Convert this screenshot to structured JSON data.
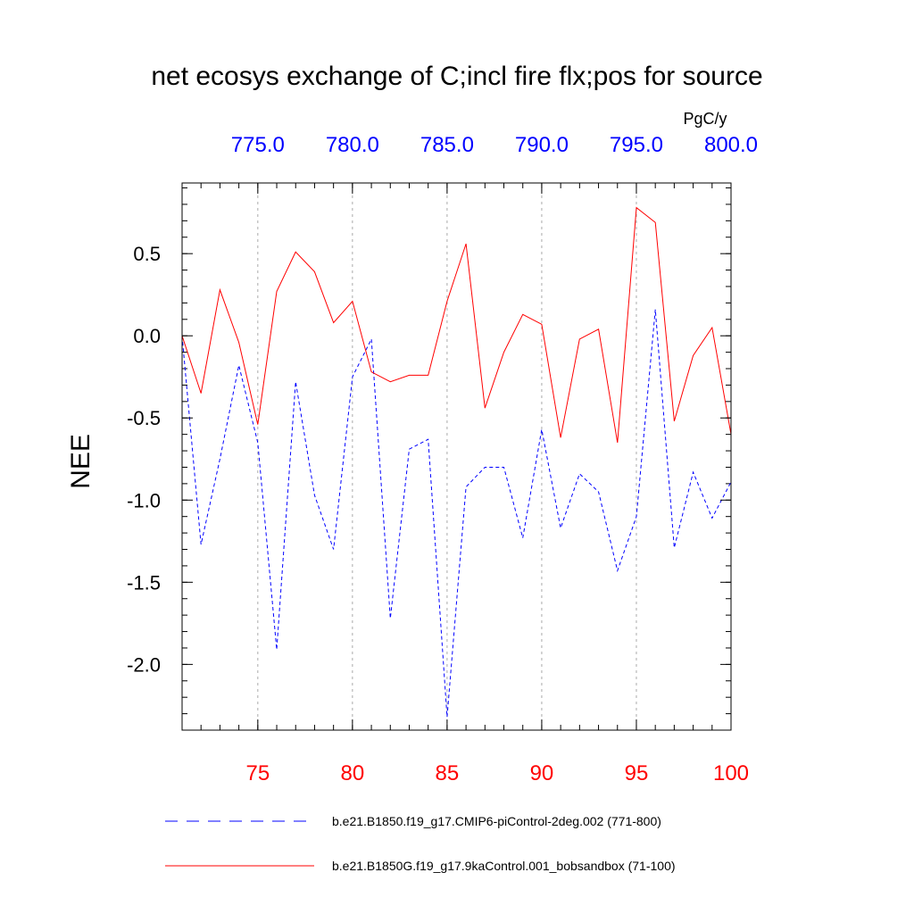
{
  "chart_data": {
    "type": "line",
    "title": "net ecosys exchange of C;incl fire flx;pos for source",
    "ylabel": "NEE",
    "units": "PgC/y",
    "ylim": [
      -2.4,
      0.93
    ],
    "yticks": [
      0.5,
      0.0,
      -0.5,
      -1.0,
      -1.5,
      -2.0
    ],
    "ytick_labels": [
      "0.5",
      "0.0",
      "-0.5",
      "-1.0",
      "-1.5",
      "-2.0"
    ],
    "bottom_axis": {
      "range": [
        71,
        100
      ],
      "ticks": [
        75,
        80,
        85,
        90,
        95,
        100
      ],
      "tick_labels": [
        "75",
        "80",
        "85",
        "90",
        "95",
        "100"
      ],
      "color": "#ff0000"
    },
    "top_axis": {
      "range": [
        771,
        800
      ],
      "ticks": [
        775,
        780,
        785,
        790,
        795,
        800
      ],
      "tick_labels": [
        "775.0",
        "780.0",
        "785.0",
        "790.0",
        "795.0",
        "800.0"
      ],
      "color": "#0000ff"
    },
    "series": [
      {
        "name": "b.e21.B1850.f19_g17.CMIP6-piControl-2deg.002 (771-800)",
        "axis": "top",
        "color": "#0000ff",
        "dash": "dashed",
        "x": [
          771,
          772,
          773,
          774,
          775,
          776,
          777,
          778,
          779,
          780,
          781,
          782,
          783,
          784,
          785,
          786,
          787,
          788,
          789,
          790,
          791,
          792,
          793,
          794,
          795,
          796,
          797,
          798,
          799,
          800
        ],
        "values": [
          0.0,
          -1.27,
          -0.75,
          -0.18,
          -0.65,
          -1.91,
          -0.28,
          -0.97,
          -1.3,
          -0.25,
          -0.02,
          -1.72,
          -0.69,
          -0.63,
          -2.32,
          -0.92,
          -0.8,
          -0.8,
          -1.23,
          -0.57,
          -1.17,
          -0.84,
          -0.95,
          -1.43,
          -1.1,
          0.16,
          -1.29,
          -0.83,
          -1.11,
          -0.89
        ]
      },
      {
        "name": "b.e21.B1850G.f19_g17.9kaControl.001_bobsandbox (71-100)",
        "axis": "bottom",
        "color": "#ff0000",
        "dash": "solid",
        "x": [
          71,
          72,
          73,
          74,
          75,
          76,
          77,
          78,
          79,
          80,
          81,
          82,
          83,
          84,
          85,
          86,
          87,
          88,
          89,
          90,
          91,
          92,
          93,
          94,
          95,
          96,
          97,
          98,
          99,
          100
        ],
        "values": [
          0.0,
          -0.35,
          0.28,
          -0.04,
          -0.54,
          0.27,
          0.51,
          0.39,
          0.08,
          0.21,
          -0.22,
          -0.28,
          -0.24,
          -0.24,
          0.21,
          0.56,
          -0.44,
          -0.1,
          0.13,
          0.07,
          -0.62,
          -0.02,
          0.04,
          -0.65,
          0.78,
          0.69,
          -0.52,
          -0.12,
          0.05,
          -0.6
        ]
      }
    ]
  }
}
